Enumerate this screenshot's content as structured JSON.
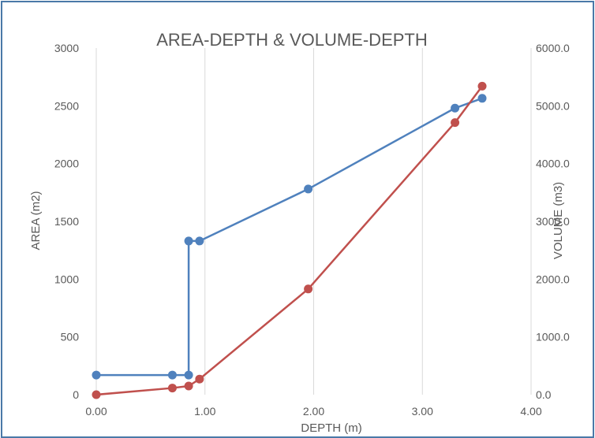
{
  "chart_data": {
    "type": "line",
    "title": "AREA-DEPTH & VOLUME-DEPTH",
    "xlabel": "DEPTH (m)",
    "ylabel": "AREA (m2)",
    "y2label": "VOLUME (m3)",
    "xlim": [
      0,
      4
    ],
    "ylim": [
      0,
      3000
    ],
    "y2lim": [
      0,
      6000
    ],
    "x_ticks": [
      0,
      1,
      2,
      3,
      4
    ],
    "x_tick_labels": [
      "0.00",
      "1.00",
      "2.00",
      "3.00",
      "4.00"
    ],
    "y_ticks": [
      0,
      500,
      1000,
      1500,
      2000,
      2500,
      3000
    ],
    "y_tick_labels": [
      "0",
      "500",
      "1000",
      "1500",
      "2000",
      "2500",
      "3000"
    ],
    "y2_ticks": [
      0,
      1000,
      2000,
      3000,
      4000,
      5000,
      6000
    ],
    "y2_tick_labels": [
      "0.0",
      "1000.0",
      "2000.0",
      "3000.0",
      "4000.0",
      "5000.0",
      "6000.0"
    ],
    "grid": "vertical",
    "legend": "none",
    "series": [
      {
        "axis": "left",
        "color": "#4f81bd",
        "points": [
          [
            0.0,
            170
          ],
          [
            0.7,
            170
          ],
          [
            0.85,
            170
          ],
          [
            0.85,
            1330
          ],
          [
            0.95,
            1330
          ],
          [
            1.95,
            1780
          ],
          [
            3.3,
            2480
          ],
          [
            3.55,
            2565
          ]
        ]
      },
      {
        "axis": "right",
        "color": "#c0504d",
        "points": [
          [
            0.0,
            0
          ],
          [
            0.7,
            115
          ],
          [
            0.85,
            150
          ],
          [
            0.95,
            270
          ],
          [
            1.95,
            1830
          ],
          [
            3.3,
            4710
          ],
          [
            3.55,
            5340
          ]
        ]
      }
    ]
  }
}
